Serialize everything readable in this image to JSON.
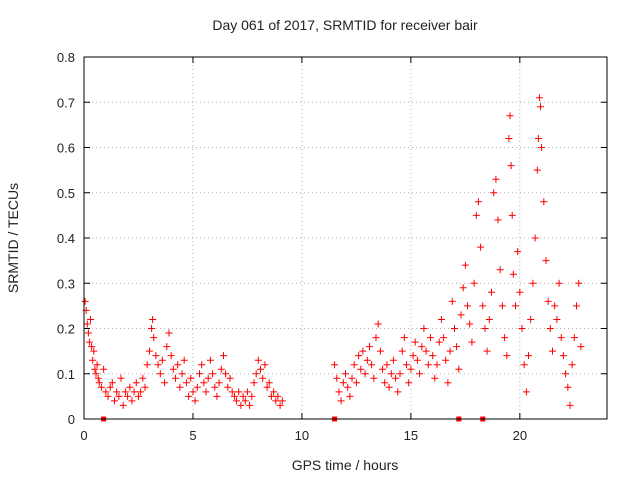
{
  "chart_data": {
    "type": "scatter",
    "title": "Day 061 of 2017, SRMTID for receiver bair",
    "xlabel": "GPS time / hours",
    "ylabel": "SRMTID / TECUs",
    "xlim": [
      0,
      24
    ],
    "ylim": [
      0,
      0.8
    ],
    "xticks": [
      0,
      5,
      10,
      15,
      20
    ],
    "yticks": [
      0,
      0.1,
      0.2,
      0.3,
      0.4,
      0.5,
      0.6,
      0.7,
      0.8
    ],
    "xtick_labels": [
      "0",
      "5",
      "10",
      "15",
      "20"
    ],
    "ytick_labels": [
      "0",
      "0.1",
      "0.2",
      "0.3",
      "0.4",
      "0.5",
      "0.6",
      "0.7",
      "0.8"
    ],
    "grid": true,
    "marker": "plus",
    "color": "#ff0000",
    "series": [
      {
        "name": "SRMTID",
        "points": [
          [
            0.05,
            0.26
          ],
          [
            0.1,
            0.24
          ],
          [
            0.15,
            0.21
          ],
          [
            0.2,
            0.19
          ],
          [
            0.25,
            0.17
          ],
          [
            0.3,
            0.22
          ],
          [
            0.35,
            0.16
          ],
          [
            0.4,
            0.13
          ],
          [
            0.45,
            0.15
          ],
          [
            0.5,
            0.11
          ],
          [
            0.55,
            0.1
          ],
          [
            0.6,
            0.12
          ],
          [
            0.65,
            0.09
          ],
          [
            0.7,
            0.08
          ],
          [
            0.8,
            0.07
          ],
          [
            0.9,
            0.11
          ],
          [
            1.0,
            0.06
          ],
          [
            1.1,
            0.05
          ],
          [
            1.2,
            0.07
          ],
          [
            1.3,
            0.08
          ],
          [
            1.4,
            0.04
          ],
          [
            1.5,
            0.06
          ],
          [
            1.6,
            0.05
          ],
          [
            1.7,
            0.09
          ],
          [
            1.8,
            0.03
          ],
          [
            1.9,
            0.06
          ],
          [
            2.0,
            0.05
          ],
          [
            2.1,
            0.07
          ],
          [
            2.2,
            0.04
          ],
          [
            2.3,
            0.06
          ],
          [
            2.4,
            0.08
          ],
          [
            2.5,
            0.05
          ],
          [
            2.6,
            0.06
          ],
          [
            2.7,
            0.09
          ],
          [
            2.8,
            0.07
          ],
          [
            2.9,
            0.12
          ],
          [
            3.0,
            0.15
          ],
          [
            3.1,
            0.2
          ],
          [
            3.15,
            0.22
          ],
          [
            3.2,
            0.18
          ],
          [
            3.3,
            0.14
          ],
          [
            3.4,
            0.12
          ],
          [
            3.5,
            0.1
          ],
          [
            3.6,
            0.13
          ],
          [
            3.7,
            0.08
          ],
          [
            3.8,
            0.16
          ],
          [
            3.9,
            0.19
          ],
          [
            4.0,
            0.14
          ],
          [
            4.1,
            0.11
          ],
          [
            4.2,
            0.09
          ],
          [
            4.3,
            0.12
          ],
          [
            4.4,
            0.07
          ],
          [
            4.5,
            0.1
          ],
          [
            4.6,
            0.13
          ],
          [
            4.7,
            0.08
          ],
          [
            4.8,
            0.05
          ],
          [
            4.9,
            0.09
          ],
          [
            5.0,
            0.06
          ],
          [
            5.1,
            0.04
          ],
          [
            5.2,
            0.07
          ],
          [
            5.3,
            0.1
          ],
          [
            5.4,
            0.12
          ],
          [
            5.5,
            0.08
          ],
          [
            5.6,
            0.06
          ],
          [
            5.7,
            0.09
          ],
          [
            5.8,
            0.13
          ],
          [
            5.9,
            0.1
          ],
          [
            6.0,
            0.07
          ],
          [
            6.1,
            0.05
          ],
          [
            6.2,
            0.08
          ],
          [
            6.3,
            0.11
          ],
          [
            6.4,
            0.14
          ],
          [
            6.5,
            0.1
          ],
          [
            6.6,
            0.07
          ],
          [
            6.7,
            0.09
          ],
          [
            6.8,
            0.06
          ],
          [
            6.9,
            0.05
          ],
          [
            7.0,
            0.04
          ],
          [
            7.1,
            0.06
          ],
          [
            7.2,
            0.03
          ],
          [
            7.3,
            0.05
          ],
          [
            7.4,
            0.04
          ],
          [
            7.5,
            0.06
          ],
          [
            7.6,
            0.03
          ],
          [
            7.7,
            0.05
          ],
          [
            7.8,
            0.08
          ],
          [
            7.9,
            0.1
          ],
          [
            8.0,
            0.13
          ],
          [
            8.1,
            0.11
          ],
          [
            8.2,
            0.09
          ],
          [
            8.3,
            0.12
          ],
          [
            8.4,
            0.07
          ],
          [
            8.5,
            0.08
          ],
          [
            8.6,
            0.05
          ],
          [
            8.7,
            0.06
          ],
          [
            8.8,
            0.04
          ],
          [
            8.9,
            0.05
          ],
          [
            9.0,
            0.03
          ],
          [
            9.1,
            0.04
          ],
          [
            11.5,
            0.12
          ],
          [
            11.6,
            0.09
          ],
          [
            11.7,
            0.06
          ],
          [
            11.8,
            0.04
          ],
          [
            11.9,
            0.08
          ],
          [
            12.0,
            0.1
          ],
          [
            12.1,
            0.07
          ],
          [
            12.2,
            0.05
          ],
          [
            12.3,
            0.09
          ],
          [
            12.4,
            0.12
          ],
          [
            12.5,
            0.08
          ],
          [
            12.6,
            0.14
          ],
          [
            12.7,
            0.11
          ],
          [
            12.8,
            0.15
          ],
          [
            12.9,
            0.1
          ],
          [
            13.0,
            0.13
          ],
          [
            13.1,
            0.16
          ],
          [
            13.2,
            0.12
          ],
          [
            13.3,
            0.09
          ],
          [
            13.4,
            0.18
          ],
          [
            13.5,
            0.21
          ],
          [
            13.6,
            0.15
          ],
          [
            13.7,
            0.11
          ],
          [
            13.8,
            0.08
          ],
          [
            13.9,
            0.12
          ],
          [
            14.0,
            0.07
          ],
          [
            14.1,
            0.1
          ],
          [
            14.2,
            0.13
          ],
          [
            14.3,
            0.09
          ],
          [
            14.4,
            0.06
          ],
          [
            14.5,
            0.1
          ],
          [
            14.6,
            0.15
          ],
          [
            14.7,
            0.18
          ],
          [
            14.8,
            0.12
          ],
          [
            14.9,
            0.08
          ],
          [
            15.0,
            0.11
          ],
          [
            15.1,
            0.14
          ],
          [
            15.2,
            0.17
          ],
          [
            15.3,
            0.13
          ],
          [
            15.4,
            0.1
          ],
          [
            15.5,
            0.16
          ],
          [
            15.6,
            0.2
          ],
          [
            15.7,
            0.15
          ],
          [
            15.8,
            0.12
          ],
          [
            15.9,
            0.18
          ],
          [
            16.0,
            0.14
          ],
          [
            16.1,
            0.09
          ],
          [
            16.2,
            0.12
          ],
          [
            16.3,
            0.17
          ],
          [
            16.4,
            0.22
          ],
          [
            16.5,
            0.18
          ],
          [
            16.6,
            0.13
          ],
          [
            16.7,
            0.08
          ],
          [
            16.8,
            0.15
          ],
          [
            16.9,
            0.26
          ],
          [
            17.0,
            0.2
          ],
          [
            17.1,
            0.16
          ],
          [
            17.2,
            0.11
          ],
          [
            17.3,
            0.23
          ],
          [
            17.4,
            0.29
          ],
          [
            17.5,
            0.34
          ],
          [
            17.6,
            0.25
          ],
          [
            17.7,
            0.21
          ],
          [
            17.8,
            0.17
          ],
          [
            17.9,
            0.3
          ],
          [
            18.0,
            0.45
          ],
          [
            18.1,
            0.48
          ],
          [
            18.2,
            0.38
          ],
          [
            18.3,
            0.25
          ],
          [
            18.4,
            0.2
          ],
          [
            18.5,
            0.15
          ],
          [
            18.6,
            0.22
          ],
          [
            18.7,
            0.28
          ],
          [
            18.8,
            0.5
          ],
          [
            18.9,
            0.53
          ],
          [
            19.0,
            0.44
          ],
          [
            19.1,
            0.33
          ],
          [
            19.2,
            0.25
          ],
          [
            19.3,
            0.18
          ],
          [
            19.4,
            0.14
          ],
          [
            19.5,
            0.62
          ],
          [
            19.55,
            0.67
          ],
          [
            19.6,
            0.56
          ],
          [
            19.65,
            0.45
          ],
          [
            19.7,
            0.32
          ],
          [
            19.8,
            0.25
          ],
          [
            19.9,
            0.37
          ],
          [
            20.0,
            0.28
          ],
          [
            20.1,
            0.2
          ],
          [
            20.2,
            0.12
          ],
          [
            20.3,
            0.06
          ],
          [
            20.4,
            0.14
          ],
          [
            20.5,
            0.22
          ],
          [
            20.6,
            0.3
          ],
          [
            20.7,
            0.4
          ],
          [
            20.8,
            0.55
          ],
          [
            20.85,
            0.62
          ],
          [
            20.9,
            0.71
          ],
          [
            20.95,
            0.69
          ],
          [
            21.0,
            0.6
          ],
          [
            21.1,
            0.48
          ],
          [
            21.2,
            0.35
          ],
          [
            21.3,
            0.26
          ],
          [
            21.4,
            0.2
          ],
          [
            21.5,
            0.15
          ],
          [
            21.6,
            0.25
          ],
          [
            21.7,
            0.22
          ],
          [
            21.8,
            0.3
          ],
          [
            21.9,
            0.18
          ],
          [
            22.0,
            0.14
          ],
          [
            22.1,
            0.1
          ],
          [
            22.2,
            0.07
          ],
          [
            22.3,
            0.03
          ],
          [
            22.4,
            0.12
          ],
          [
            22.5,
            0.18
          ],
          [
            22.6,
            0.25
          ],
          [
            22.7,
            0.3
          ],
          [
            22.8,
            0.16
          ]
        ]
      }
    ],
    "markers_on_axis": [
      0.9,
      11.5,
      17.2,
      18.3
    ]
  }
}
